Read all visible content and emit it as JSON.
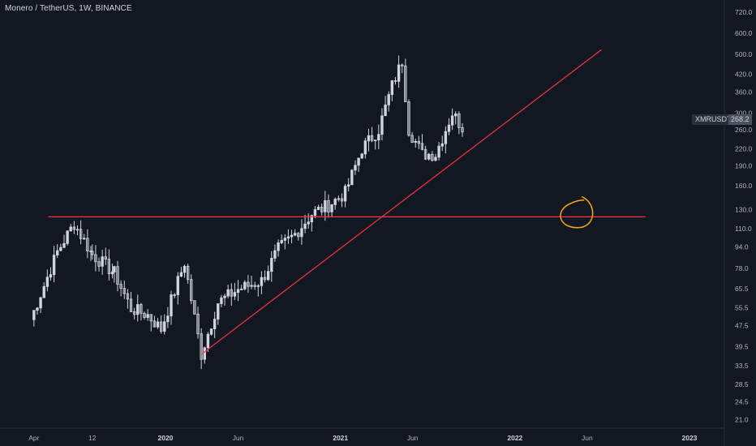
{
  "header": {
    "title": "Monero / TetherUS, 1W, BINANCE"
  },
  "price_tag": {
    "symbol": "XMRUSDT",
    "value": "268.2"
  },
  "colors": {
    "background": "#131722",
    "candle": "#d1d4dc",
    "trendline": "#f23645",
    "circle": "#f5a623",
    "axis_text": "#b2b5be"
  },
  "chart_data": {
    "type": "candlestick",
    "title": "Monero / TetherUS, 1W, BINANCE",
    "y_scale": "log",
    "ylim": [
      19.5,
      800
    ],
    "y_ticks": [
      {
        "label": "720.0",
        "value": 720
      },
      {
        "label": "600.0",
        "value": 600
      },
      {
        "label": "500.0",
        "value": 500
      },
      {
        "label": "420.0",
        "value": 420
      },
      {
        "label": "360.0",
        "value": 360
      },
      {
        "label": "300.0",
        "value": 300
      },
      {
        "label": "260.0",
        "value": 260
      },
      {
        "label": "220.0",
        "value": 220
      },
      {
        "label": "190.0",
        "value": 190
      },
      {
        "label": "160.0",
        "value": 160
      },
      {
        "label": "130.0",
        "value": 130
      },
      {
        "label": "110.0",
        "value": 110
      },
      {
        "label": "94.0",
        "value": 94
      },
      {
        "label": "78.0",
        "value": 78
      },
      {
        "label": "65.5",
        "value": 65.5
      },
      {
        "label": "55.5",
        "value": 55.5
      },
      {
        "label": "47.5",
        "value": 47.5
      },
      {
        "label": "39.5",
        "value": 39.5
      },
      {
        "label": "33.5",
        "value": 33.5
      },
      {
        "label": "28.5",
        "value": 28.5
      },
      {
        "label": "24.5",
        "value": 24.5
      },
      {
        "label": "21.0",
        "value": 21.0
      }
    ],
    "xlim": [
      "2019-01-20",
      "2023-03-15"
    ],
    "x_ticks": [
      {
        "label": "Apr",
        "date": "2019-04-01",
        "bold": false
      },
      {
        "label": "12",
        "date": "2019-08-01",
        "bold": false
      },
      {
        "label": "2020",
        "date": "2020-01-01",
        "bold": true
      },
      {
        "label": "Jun",
        "date": "2020-06-01",
        "bold": false
      },
      {
        "label": "2021",
        "date": "2021-01-01",
        "bold": true
      },
      {
        "label": "Jun",
        "date": "2021-06-01",
        "bold": false
      },
      {
        "label": "2022",
        "date": "2022-01-01",
        "bold": true
      },
      {
        "label": "Jun",
        "date": "2022-06-01",
        "bold": false
      },
      {
        "label": "2023",
        "date": "2023-01-01",
        "bold": true
      }
    ],
    "anchors": [
      {
        "date": "2019-03-25",
        "price": 50
      },
      {
        "date": "2019-05-20",
        "price": 90
      },
      {
        "date": "2019-06-24",
        "price": 115
      },
      {
        "date": "2019-08-01",
        "price": 88
      },
      {
        "date": "2019-09-16",
        "price": 75
      },
      {
        "date": "2019-10-21",
        "price": 55
      },
      {
        "date": "2019-11-25",
        "price": 52
      },
      {
        "date": "2019-12-23",
        "price": 46
      },
      {
        "date": "2020-02-10",
        "price": 82
      },
      {
        "date": "2020-03-16",
        "price": 37
      },
      {
        "date": "2020-04-20",
        "price": 58
      },
      {
        "date": "2020-06-01",
        "price": 65
      },
      {
        "date": "2020-07-20",
        "price": 70
      },
      {
        "date": "2020-08-24",
        "price": 92
      },
      {
        "date": "2020-09-28",
        "price": 105
      },
      {
        "date": "2020-11-02",
        "price": 125
      },
      {
        "date": "2020-12-07",
        "price": 135
      },
      {
        "date": "2021-01-11",
        "price": 150
      },
      {
        "date": "2021-02-15",
        "price": 220
      },
      {
        "date": "2021-03-22",
        "price": 260
      },
      {
        "date": "2021-04-19",
        "price": 380
      },
      {
        "date": "2021-05-10",
        "price": 470
      },
      {
        "date": "2021-05-24",
        "price": 260
      },
      {
        "date": "2021-06-21",
        "price": 210
      },
      {
        "date": "2021-07-19",
        "price": 210
      },
      {
        "date": "2021-08-23",
        "price": 300
      },
      {
        "date": "2021-09-13",
        "price": 265
      }
    ],
    "annotations": {
      "horizontal_line": {
        "price": 122,
        "from": "2019-05-01",
        "to": "2022-10-01"
      },
      "trendline": {
        "from": {
          "date": "2020-03-16",
          "price": 37
        },
        "to": {
          "date": "2022-07-01",
          "price": 520
        }
      },
      "circle": {
        "date": "2022-05-15",
        "price": 126
      }
    }
  }
}
